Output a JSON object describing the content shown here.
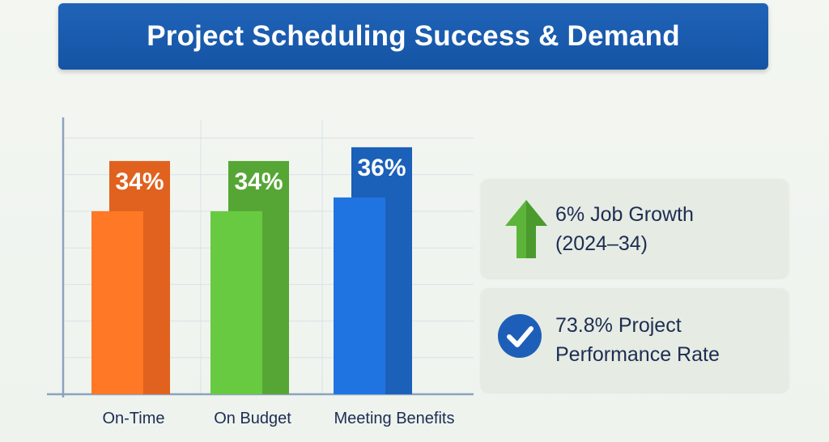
{
  "title": "Project Scheduling Success & Demand",
  "chart_data": {
    "type": "bar",
    "categories": [
      "On-Time",
      "On Budget",
      "Meeting Benefits"
    ],
    "values": [
      34,
      34,
      36
    ],
    "value_labels": [
      "34%",
      "34%",
      "36%"
    ],
    "colors": [
      "#f36b21",
      "#5db43a",
      "#1d68c9"
    ],
    "ylim": [
      0,
      40
    ],
    "grid": true,
    "legend": "none"
  },
  "stats": {
    "growth": {
      "line1": "6% Job Growth",
      "line2": "(2024–34)",
      "icon": "up-arrow-icon",
      "icon_color": "#5db43a"
    },
    "performance": {
      "line1": "73.8% Project",
      "line2": "Performance Rate",
      "icon": "check-circle-icon",
      "icon_color": "#1d5fb8"
    }
  }
}
